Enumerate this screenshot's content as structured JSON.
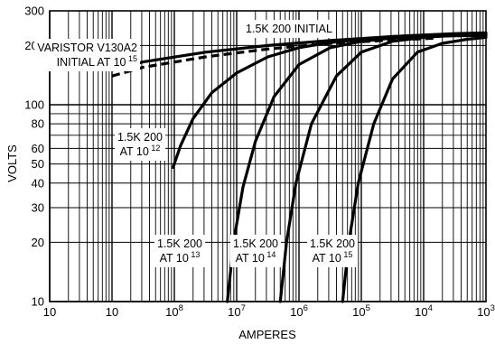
{
  "chart_data": {
    "type": "line",
    "title": "",
    "xlabel": "AMPERES",
    "ylabel": "VOLTS",
    "x_scale": "log",
    "y_scale": "log",
    "x_ticks": [
      {
        "base": "10",
        "exp": ""
      },
      {
        "base": "10",
        "exp": ""
      },
      {
        "base": "10",
        "exp": "8"
      },
      {
        "base": "10",
        "exp": "7"
      },
      {
        "base": "10",
        "exp": "6"
      },
      {
        "base": "10",
        "exp": "5"
      },
      {
        "base": "10",
        "exp": "4"
      },
      {
        "base": "10",
        "exp": "3"
      }
    ],
    "y_ticks": [
      "300",
      "200",
      "100",
      "80",
      "60",
      "50",
      "40",
      "30",
      "20",
      "10"
    ],
    "ylim": [
      10,
      300
    ],
    "grid": true,
    "series": [
      {
        "name": "",
        "style": "solid",
        "points": [
          [
            1.02,
            150
          ],
          [
            1.5,
            165
          ],
          [
            2.5,
            185
          ],
          [
            3.5,
            200
          ],
          [
            4.5,
            212
          ],
          [
            5.5,
            222
          ],
          [
            6.5,
            230
          ],
          [
            7,
            232
          ]
        ]
      },
      {
        "name": "",
        "style": "dashed",
        "points": [
          [
            1.0,
            140
          ],
          [
            1.5,
            155
          ],
          [
            2.5,
            175
          ],
          [
            3.5,
            192
          ],
          [
            4.5,
            205
          ],
          [
            5.5,
            213
          ],
          [
            6.2,
            218
          ]
        ]
      },
      {
        "name": "",
        "style": "solid",
        "points": [
          [
            1.98,
            48
          ],
          [
            2.1,
            62
          ],
          [
            2.3,
            85
          ],
          [
            2.6,
            115
          ],
          [
            3.0,
            145
          ],
          [
            3.5,
            175
          ],
          [
            4.0,
            195
          ],
          [
            4.5,
            207
          ],
          [
            5.0,
            215
          ],
          [
            5.5,
            222
          ],
          [
            6.0,
            226
          ],
          [
            6.5,
            229
          ],
          [
            7.0,
            230
          ]
        ]
      },
      {
        "name": "",
        "style": "solid",
        "points": [
          [
            2.85,
            10
          ],
          [
            2.95,
            20
          ],
          [
            3.1,
            38
          ],
          [
            3.3,
            65
          ],
          [
            3.6,
            110
          ],
          [
            4.0,
            160
          ],
          [
            4.5,
            195
          ],
          [
            5.0,
            210
          ],
          [
            5.5,
            218
          ],
          [
            6.0,
            222
          ],
          [
            6.5,
            224
          ],
          [
            7.0,
            225
          ]
        ]
      },
      {
        "name": "",
        "style": "solid",
        "points": [
          [
            3.7,
            10
          ],
          [
            3.8,
            20
          ],
          [
            3.95,
            40
          ],
          [
            4.2,
            80
          ],
          [
            4.6,
            140
          ],
          [
            5.0,
            185
          ],
          [
            5.5,
            210
          ],
          [
            6.0,
            220
          ],
          [
            6.5,
            225
          ],
          [
            7.0,
            227
          ]
        ]
      },
      {
        "name": "",
        "style": "solid",
        "points": [
          [
            4.7,
            10
          ],
          [
            4.8,
            20
          ],
          [
            4.95,
            40
          ],
          [
            5.2,
            80
          ],
          [
            5.5,
            135
          ],
          [
            5.9,
            185
          ],
          [
            6.3,
            205
          ],
          [
            6.7,
            215
          ],
          [
            7.0,
            220
          ]
        ]
      }
    ],
    "annotations": [
      {
        "lines": [
          {
            "text": "1.5K 200 INITIAL",
            "exp": ""
          }
        ]
      },
      {
        "lines": [
          {
            "text": "VARISTOR V130A2",
            "exp": ""
          },
          {
            "text": "INITIAL AT 10",
            "exp": "15"
          }
        ]
      },
      {
        "lines": [
          {
            "text": "1.5K 200",
            "exp": ""
          },
          {
            "text": "AT 10",
            "exp": "12"
          }
        ]
      },
      {
        "lines": [
          {
            "text": "1.5K 200",
            "exp": ""
          },
          {
            "text": "AT 10",
            "exp": "13"
          }
        ]
      },
      {
        "lines": [
          {
            "text": "1.5K 200",
            "exp": ""
          },
          {
            "text": "AT 10",
            "exp": "14"
          }
        ]
      },
      {
        "lines": [
          {
            "text": "1.5K 200",
            "exp": ""
          },
          {
            "text": "AT 10",
            "exp": "15"
          }
        ]
      }
    ]
  }
}
